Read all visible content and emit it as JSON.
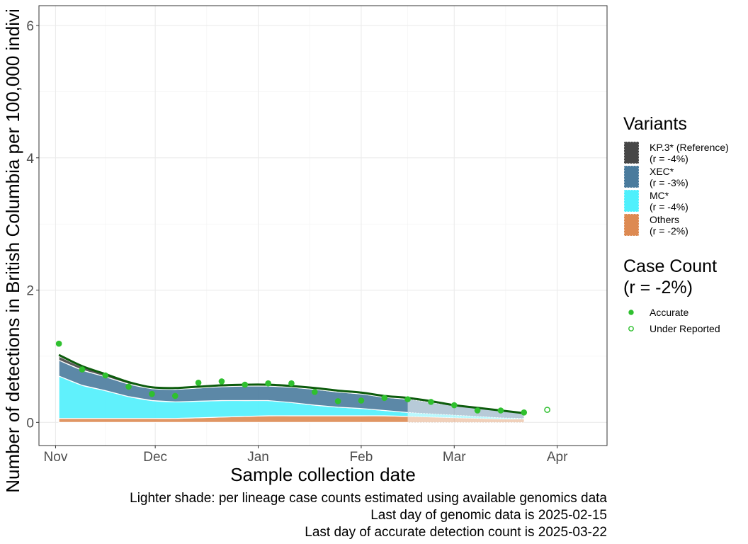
{
  "chart_data": {
    "type": "area",
    "xlabel": "Sample collection date",
    "ylabel": "Number of detections in British Columbia per 100,000 indivi",
    "x_range": [
      "2024-10-27",
      "2025-04-16"
    ],
    "ylim": [
      -0.35,
      6.3
    ],
    "x_ticks": [
      {
        "date": "2024-11-01",
        "label": "Nov"
      },
      {
        "date": "2024-12-01",
        "label": "Dec"
      },
      {
        "date": "2025-01-01",
        "label": "Jan"
      },
      {
        "date": "2025-02-01",
        "label": "Feb"
      },
      {
        "date": "2025-03-01",
        "label": "Mar"
      },
      {
        "date": "2025-04-01",
        "label": "Apr"
      }
    ],
    "y_ticks": [
      {
        "value": 0,
        "label": "0"
      },
      {
        "value": 2,
        "label": "2"
      },
      {
        "value": 4,
        "label": "4"
      },
      {
        "value": 6,
        "label": "6"
      }
    ],
    "grid": true,
    "genomic_cutoff_date": "2025-02-15",
    "dates": [
      "2024-11-02",
      "2024-11-09",
      "2024-11-16",
      "2024-11-23",
      "2024-11-30",
      "2024-12-07",
      "2024-12-14",
      "2024-12-21",
      "2024-12-28",
      "2025-01-04",
      "2025-01-11",
      "2025-01-18",
      "2025-01-25",
      "2025-02-01",
      "2025-02-08",
      "2025-02-15",
      "2025-02-22",
      "2025-03-01",
      "2025-03-08",
      "2025-03-15",
      "2025-03-22"
    ],
    "series": [
      {
        "name": "KP.3* (Reference)",
        "color": "#474747",
        "values": [
          0.06,
          0.05,
          0.04,
          0.03,
          0.02,
          0.02,
          0.02,
          0.02,
          0.02,
          0.02,
          0.02,
          0.02,
          0.02,
          0.02,
          0.02,
          0.02,
          0.02,
          0.01,
          0.01,
          0.01,
          0.01
        ]
      },
      {
        "name": "XEC*",
        "color": "#4a7b9d",
        "values": [
          0.24,
          0.23,
          0.21,
          0.19,
          0.18,
          0.19,
          0.2,
          0.21,
          0.22,
          0.22,
          0.23,
          0.24,
          0.23,
          0.22,
          0.2,
          0.2,
          0.17,
          0.14,
          0.12,
          0.1,
          0.07
        ]
      },
      {
        "name": "MC*",
        "color": "#4ff0fc",
        "values": [
          0.64,
          0.5,
          0.42,
          0.33,
          0.27,
          0.25,
          0.25,
          0.25,
          0.24,
          0.23,
          0.2,
          0.16,
          0.13,
          0.11,
          0.08,
          0.06,
          0.05,
          0.04,
          0.03,
          0.02,
          0.01
        ]
      },
      {
        "name": "Others",
        "color": "#dd8a52",
        "values": [
          0.06,
          0.06,
          0.06,
          0.06,
          0.06,
          0.06,
          0.07,
          0.08,
          0.09,
          0.1,
          0.1,
          0.1,
          0.1,
          0.1,
          0.1,
          0.09,
          0.08,
          0.07,
          0.06,
          0.05,
          0.05
        ]
      }
    ],
    "total_line": {
      "color": "#0d5c0d",
      "values": [
        1.02,
        0.85,
        0.73,
        0.61,
        0.53,
        0.52,
        0.54,
        0.56,
        0.57,
        0.57,
        0.55,
        0.52,
        0.48,
        0.45,
        0.4,
        0.37,
        0.32,
        0.26,
        0.22,
        0.18,
        0.14
      ]
    },
    "points": {
      "color": "#2fc02f",
      "accurate": [
        {
          "x": "2024-11-02",
          "y": 1.19
        },
        {
          "x": "2024-11-09",
          "y": 0.8
        },
        {
          "x": "2024-11-16",
          "y": 0.71
        },
        {
          "x": "2024-11-23",
          "y": 0.54
        },
        {
          "x": "2024-11-30",
          "y": 0.43
        },
        {
          "x": "2024-12-07",
          "y": 0.4
        },
        {
          "x": "2024-12-14",
          "y": 0.6
        },
        {
          "x": "2024-12-21",
          "y": 0.62
        },
        {
          "x": "2024-12-28",
          "y": 0.57
        },
        {
          "x": "2025-01-04",
          "y": 0.59
        },
        {
          "x": "2025-01-11",
          "y": 0.59
        },
        {
          "x": "2025-01-18",
          "y": 0.46
        },
        {
          "x": "2025-01-25",
          "y": 0.32
        },
        {
          "x": "2025-02-01",
          "y": 0.33
        },
        {
          "x": "2025-02-08",
          "y": 0.37
        },
        {
          "x": "2025-02-15",
          "y": 0.35
        },
        {
          "x": "2025-02-22",
          "y": 0.31
        },
        {
          "x": "2025-03-01",
          "y": 0.26
        },
        {
          "x": "2025-03-08",
          "y": 0.18
        },
        {
          "x": "2025-03-15",
          "y": 0.18
        },
        {
          "x": "2025-03-22",
          "y": 0.15
        }
      ],
      "under_reported": [
        {
          "x": "2025-03-29",
          "y": 0.19
        }
      ]
    }
  },
  "legend": {
    "placement": "right",
    "variants_title": "Variants",
    "variants": [
      {
        "line1": "KP.3* (Reference)",
        "line2": "(r = -4%)",
        "color": "#474747"
      },
      {
        "line1": "XEC*",
        "line2": "(r = -3%)",
        "color": "#4a7b9d"
      },
      {
        "line1": "MC*",
        "line2": "(r = -4%)",
        "color": "#4ff0fc"
      },
      {
        "line1": "Others",
        "line2": "(r = -2%)",
        "color": "#dd8a52"
      }
    ],
    "case_title_line1": "Case Count",
    "case_title_line2": "(r = -2%)",
    "case_items": [
      {
        "label": "Accurate",
        "filled": true
      },
      {
        "label": "Under Reported",
        "filled": false
      }
    ]
  },
  "captions": [
    "Lighter shade: per lineage case counts estimated using available genomics data",
    "Last day of genomic data is 2025-02-15",
    "Last day of accurate detection count is 2025-03-22"
  ]
}
